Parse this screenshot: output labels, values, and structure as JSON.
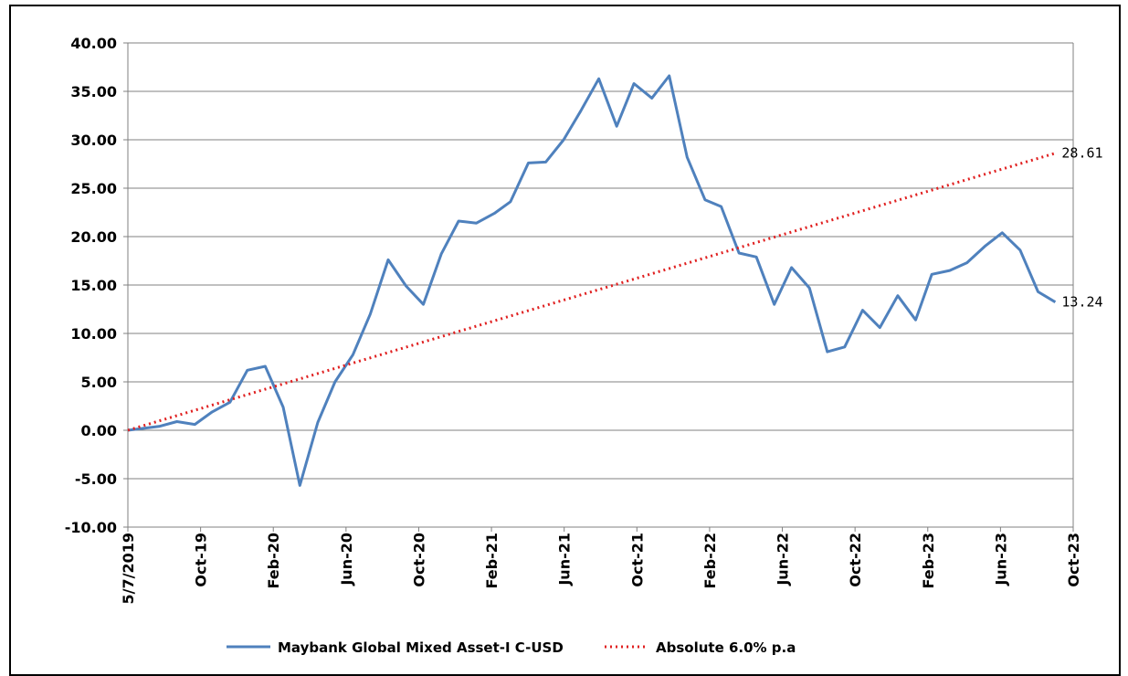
{
  "chart_data": {
    "type": "line",
    "title": "",
    "xlabel": "",
    "ylabel": "",
    "ylim": [
      -10,
      40
    ],
    "y_ticks": [
      "40.00",
      "35.00",
      "30.00",
      "25.00",
      "20.00",
      "15.00",
      "10.00",
      "5.00",
      "0.00",
      "-5.00",
      "-10.00"
    ],
    "x_range": [
      "2019-05-07",
      "2023-10-31"
    ],
    "x_ticks": [
      "5/7/2019",
      "Oct-19",
      "Feb-20",
      "Jun-20",
      "Oct-20",
      "Feb-21",
      "Jun-21",
      "Oct-21",
      "Feb-22",
      "Jun-22",
      "Oct-22",
      "Feb-23",
      "Jun-23",
      "Oct-23"
    ],
    "grid": "horizontal",
    "legend_position": "bottom",
    "series": [
      {
        "name": "Maybank Global Mixed Asset-I C-USD",
        "color": "#4f81bd",
        "style": "solid",
        "end_label": "13.24",
        "points": [
          [
            "2019-05-07",
            0.0
          ],
          [
            "2019-06-30",
            0.4
          ],
          [
            "2019-07-31",
            0.9
          ],
          [
            "2019-08-31",
            0.6
          ],
          [
            "2019-09-30",
            1.9
          ],
          [
            "2019-10-31",
            2.9
          ],
          [
            "2019-11-30",
            6.2
          ],
          [
            "2019-12-31",
            6.6
          ],
          [
            "2020-01-31",
            2.4
          ],
          [
            "2020-02-29",
            -5.7
          ],
          [
            "2020-03-31",
            0.8
          ],
          [
            "2020-04-30",
            5.0
          ],
          [
            "2020-05-31",
            7.8
          ],
          [
            "2020-06-30",
            12.0
          ],
          [
            "2020-07-31",
            17.6
          ],
          [
            "2020-08-31",
            14.9
          ],
          [
            "2020-09-30",
            13.0
          ],
          [
            "2020-10-31",
            18.2
          ],
          [
            "2020-11-30",
            21.6
          ],
          [
            "2020-12-31",
            21.4
          ],
          [
            "2021-01-31",
            22.4
          ],
          [
            "2021-02-28",
            23.6
          ],
          [
            "2021-03-31",
            27.6
          ],
          [
            "2021-04-30",
            27.7
          ],
          [
            "2021-05-31",
            30.0
          ],
          [
            "2021-06-30",
            33.0
          ],
          [
            "2021-07-31",
            36.3
          ],
          [
            "2021-08-31",
            31.4
          ],
          [
            "2021-09-30",
            35.8
          ],
          [
            "2021-10-31",
            34.3
          ],
          [
            "2021-11-30",
            36.6
          ],
          [
            "2021-12-31",
            28.2
          ],
          [
            "2022-01-31",
            23.8
          ],
          [
            "2022-02-28",
            23.1
          ],
          [
            "2022-03-31",
            18.3
          ],
          [
            "2022-04-30",
            17.9
          ],
          [
            "2022-05-31",
            13.0
          ],
          [
            "2022-06-30",
            16.8
          ],
          [
            "2022-07-31",
            14.7
          ],
          [
            "2022-08-31",
            8.1
          ],
          [
            "2022-09-30",
            8.6
          ],
          [
            "2022-10-31",
            12.4
          ],
          [
            "2022-11-30",
            10.6
          ],
          [
            "2022-12-31",
            13.9
          ],
          [
            "2023-01-31",
            11.4
          ],
          [
            "2023-02-28",
            16.1
          ],
          [
            "2023-03-31",
            16.5
          ],
          [
            "2023-04-30",
            17.3
          ],
          [
            "2023-05-31",
            19.0
          ],
          [
            "2023-06-30",
            20.4
          ],
          [
            "2023-07-31",
            18.6
          ],
          [
            "2023-08-31",
            14.3
          ],
          [
            "2023-09-30",
            13.24
          ]
        ]
      },
      {
        "name": "Absolute 6.0% p.a",
        "color": "#e02020",
        "style": "dotted",
        "end_label": "28.61",
        "points": [
          [
            "2019-05-07",
            0.0
          ],
          [
            "2023-09-30",
            28.61
          ]
        ]
      }
    ]
  }
}
